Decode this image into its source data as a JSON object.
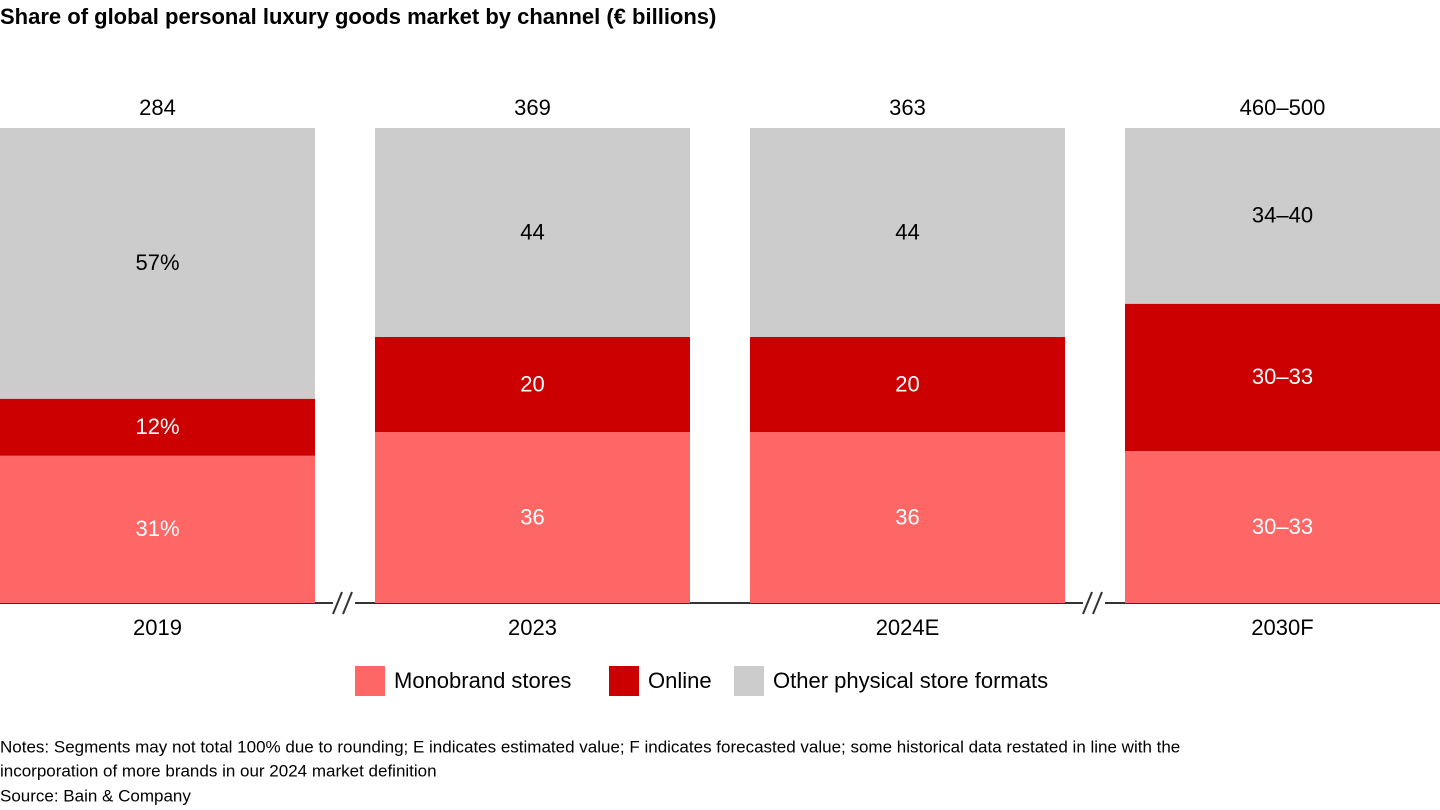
{
  "chart_data": {
    "type": "stacked_bar_100",
    "title": "Share of global personal luxury goods market by channel (€ billions)",
    "categories": [
      "2019",
      "2023",
      "2024E",
      "2030F"
    ],
    "totals": [
      284,
      369,
      363,
      480
    ],
    "total_labels": [
      "284",
      "369",
      "363",
      "460–500"
    ],
    "series": [
      {
        "name": "Monobrand stores",
        "color": "#ff6666",
        "values": [
          31,
          36,
          36,
          32
        ],
        "value_labels": [
          "31%",
          "36",
          "36",
          "30–33"
        ]
      },
      {
        "name": "Online",
        "color": "#cc0000",
        "values": [
          12,
          20,
          20,
          31
        ],
        "value_labels": [
          "12%",
          "20",
          "20",
          "30–33"
        ]
      },
      {
        "name": "Other physical store formats",
        "color": "#cccccc",
        "values": [
          57,
          44,
          44,
          37
        ],
        "value_labels": [
          "57%",
          "44",
          "44",
          "34–40"
        ]
      }
    ],
    "ylim": [
      0,
      100
    ],
    "notes": [
      "Notes: Segments may not total 100% due to rounding; E indicates estimated value; F indicates forecasted value; some historical data restated in line with the",
      "incorporation of more brands in our 2024 market definition",
      "Source: Bain & Company"
    ]
  }
}
